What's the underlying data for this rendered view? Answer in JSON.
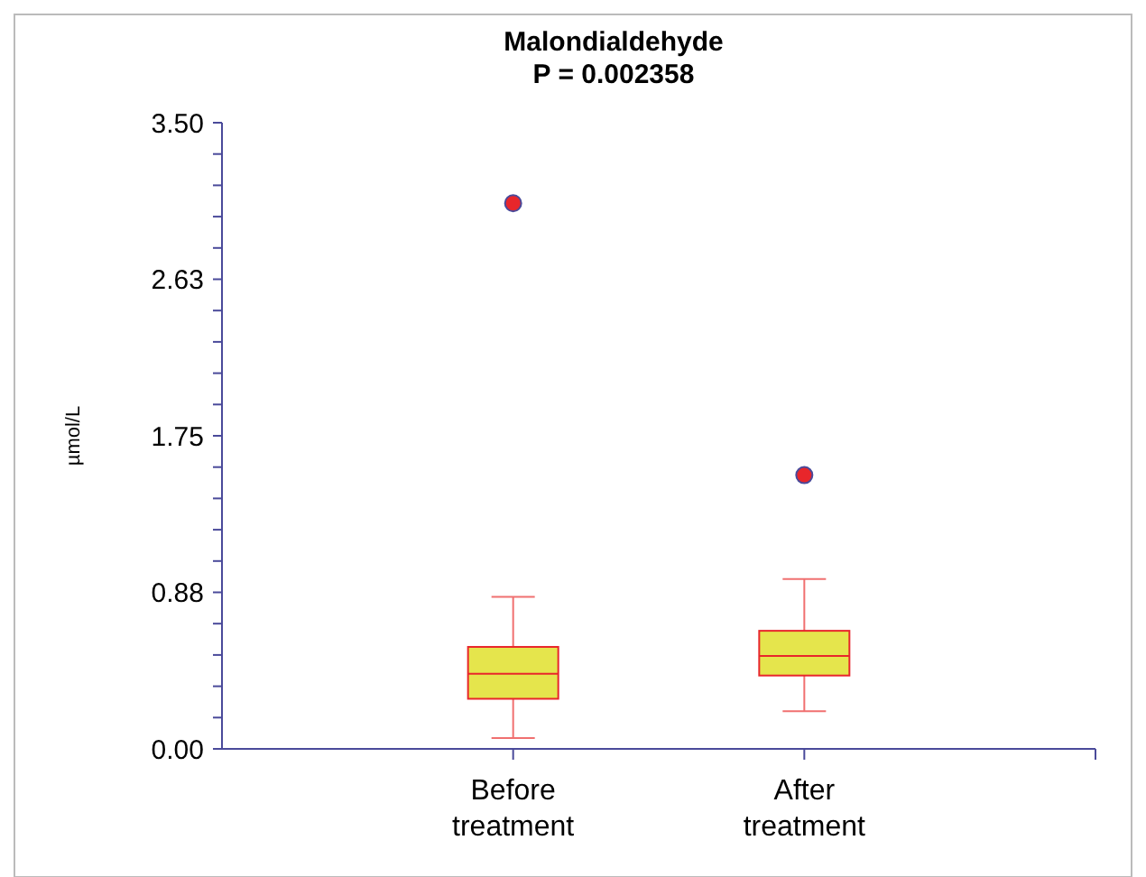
{
  "chart_data": {
    "type": "box",
    "title": "Malondialdehyde",
    "subtitle": "P = 0.002358",
    "ylabel": "µmol/L",
    "categories": [
      "Before treatment",
      "After treatment"
    ],
    "boxes": [
      {
        "low": 0.06,
        "q1": 0.28,
        "median": 0.42,
        "q3": 0.57,
        "high": 0.85,
        "outliers": [
          3.05
        ]
      },
      {
        "low": 0.21,
        "q1": 0.41,
        "median": 0.52,
        "q3": 0.66,
        "high": 0.95,
        "outliers": [
          1.53
        ]
      }
    ],
    "color": "#e5e54c",
    "ylim": [
      0,
      3.5
    ],
    "yticks": [
      {
        "value": 0,
        "label": "0.00"
      },
      {
        "value": 0.175,
        "label": null
      },
      {
        "value": 0.35,
        "label": null
      },
      {
        "value": 0.525,
        "label": null
      },
      {
        "value": 0.7,
        "label": null
      },
      {
        "value": 0.875,
        "label": "0.88"
      },
      {
        "value": 1.05,
        "label": null
      },
      {
        "value": 1.225,
        "label": null
      },
      {
        "value": 1.4,
        "label": null
      },
      {
        "value": 1.575,
        "label": null
      },
      {
        "value": 1.75,
        "label": "1.75"
      },
      {
        "value": 1.925,
        "label": null
      },
      {
        "value": 2.1,
        "label": null
      },
      {
        "value": 2.275,
        "label": null
      },
      {
        "value": 2.45,
        "label": null
      },
      {
        "value": 2.625,
        "label": "2.63"
      },
      {
        "value": 2.8,
        "label": null
      },
      {
        "value": 2.975,
        "label": null
      },
      {
        "value": 3.15,
        "label": null
      },
      {
        "value": 3.325,
        "label": null
      },
      {
        "value": 3.5,
        "label": "3.50"
      }
    ],
    "grid": false
  }
}
